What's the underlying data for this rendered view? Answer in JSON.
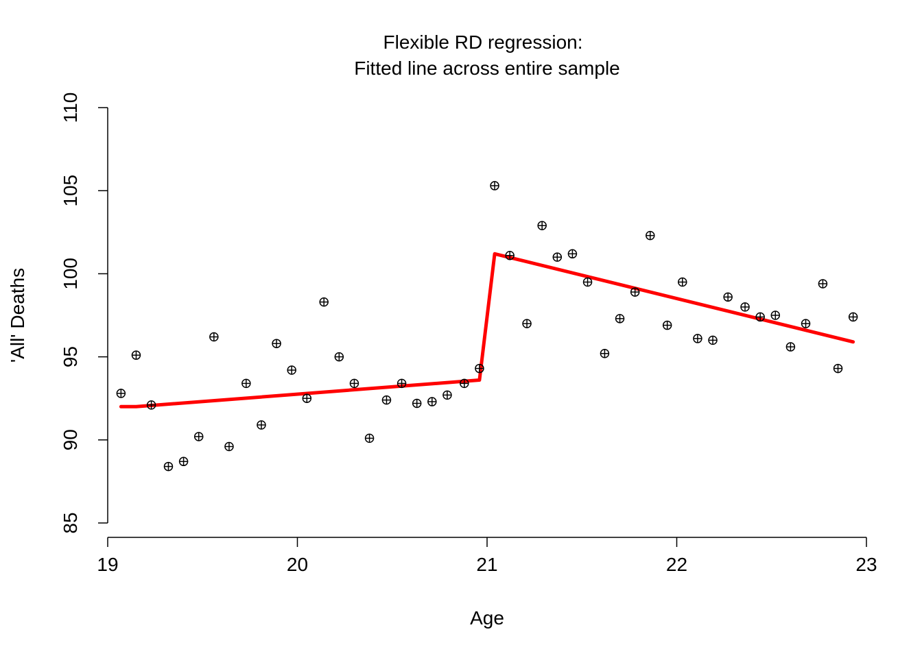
{
  "chart_data": {
    "type": "scatter",
    "title": "Flexible RD regression:",
    "subtitle": "Fitted line across entire sample",
    "xlabel": "Age",
    "ylabel": "'All' Deaths",
    "xlim": [
      19,
      23
    ],
    "ylim": [
      85,
      110
    ],
    "xticks": [
      "19",
      "20",
      "21",
      "22",
      "23"
    ],
    "yticks": [
      "85",
      "90",
      "95",
      "100",
      "105",
      "110"
    ],
    "grid": false,
    "colors": {
      "points": "#000000",
      "fit_line": "#ff0000"
    },
    "points": [
      [
        19.07,
        92.8
      ],
      [
        19.15,
        95.1
      ],
      [
        19.23,
        92.1
      ],
      [
        19.32,
        88.4
      ],
      [
        19.4,
        88.7
      ],
      [
        19.48,
        90.2
      ],
      [
        19.56,
        96.2
      ],
      [
        19.64,
        89.6
      ],
      [
        19.73,
        93.4
      ],
      [
        19.81,
        90.9
      ],
      [
        19.89,
        95.8
      ],
      [
        19.97,
        94.2
      ],
      [
        20.05,
        92.5
      ],
      [
        20.14,
        98.3
      ],
      [
        20.22,
        95.0
      ],
      [
        20.3,
        93.4
      ],
      [
        20.38,
        90.1
      ],
      [
        20.47,
        92.4
      ],
      [
        20.55,
        93.4
      ],
      [
        20.63,
        92.2
      ],
      [
        20.71,
        92.3
      ],
      [
        20.79,
        92.7
      ],
      [
        20.88,
        93.4
      ],
      [
        20.96,
        94.3
      ],
      [
        21.04,
        105.3
      ],
      [
        21.12,
        101.1
      ],
      [
        21.21,
        97.0
      ],
      [
        21.29,
        102.9
      ],
      [
        21.37,
        101.0
      ],
      [
        21.45,
        101.2
      ],
      [
        21.53,
        99.5
      ],
      [
        21.62,
        95.2
      ],
      [
        21.7,
        97.3
      ],
      [
        21.78,
        98.9
      ],
      [
        21.86,
        102.3
      ],
      [
        21.95,
        96.9
      ],
      [
        22.03,
        99.5
      ],
      [
        22.11,
        96.1
      ],
      [
        22.19,
        96.0
      ],
      [
        22.27,
        98.6
      ],
      [
        22.36,
        98.0
      ],
      [
        22.44,
        97.4
      ],
      [
        22.52,
        97.5
      ],
      [
        22.6,
        95.6
      ],
      [
        22.68,
        97.0
      ],
      [
        22.77,
        99.4
      ],
      [
        22.85,
        94.3
      ],
      [
        22.93,
        97.4
      ]
    ],
    "fit_line": [
      [
        19.07,
        92.0
      ],
      [
        19.15,
        92.0
      ],
      [
        20.96,
        93.6
      ],
      [
        21.04,
        101.2
      ],
      [
        22.93,
        95.9
      ]
    ]
  }
}
